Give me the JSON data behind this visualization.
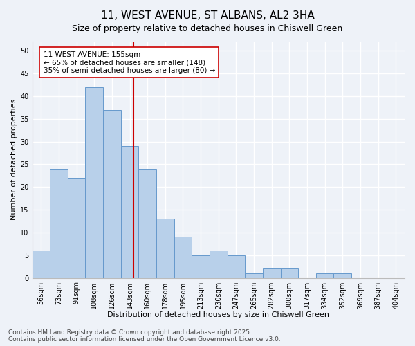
{
  "title": "11, WEST AVENUE, ST ALBANS, AL2 3HA",
  "subtitle": "Size of property relative to detached houses in Chiswell Green",
  "xlabel": "Distribution of detached houses by size in Chiswell Green",
  "ylabel": "Number of detached properties",
  "bar_labels": [
    "56sqm",
    "73sqm",
    "91sqm",
    "108sqm",
    "126sqm",
    "143sqm",
    "160sqm",
    "178sqm",
    "195sqm",
    "213sqm",
    "230sqm",
    "247sqm",
    "265sqm",
    "282sqm",
    "300sqm",
    "317sqm",
    "334sqm",
    "352sqm",
    "369sqm",
    "387sqm",
    "404sqm"
  ],
  "bar_values": [
    6,
    24,
    22,
    42,
    37,
    29,
    24,
    13,
    9,
    5,
    6,
    5,
    1,
    2,
    2,
    0,
    1,
    1,
    0,
    0,
    0
  ],
  "bar_color": "#b8d0ea",
  "bar_edge_color": "#6699cc",
  "vline_color": "#cc0000",
  "annotation_text": "11 WEST AVENUE: 155sqm\n← 65% of detached houses are smaller (148)\n35% of semi-detached houses are larger (80) →",
  "ylim": [
    0,
    52
  ],
  "yticks": [
    0,
    5,
    10,
    15,
    20,
    25,
    30,
    35,
    40,
    45,
    50
  ],
  "bg_color": "#eef2f8",
  "plot_bg_color": "#eef2f8",
  "grid_color": "#ffffff",
  "footer_line1": "Contains HM Land Registry data © Crown copyright and database right 2025.",
  "footer_line2": "Contains public sector information licensed under the Open Government Licence v3.0.",
  "title_fontsize": 11,
  "subtitle_fontsize": 9,
  "xlabel_fontsize": 8,
  "ylabel_fontsize": 8,
  "tick_fontsize": 7,
  "annot_fontsize": 7.5,
  "footer_fontsize": 6.5
}
